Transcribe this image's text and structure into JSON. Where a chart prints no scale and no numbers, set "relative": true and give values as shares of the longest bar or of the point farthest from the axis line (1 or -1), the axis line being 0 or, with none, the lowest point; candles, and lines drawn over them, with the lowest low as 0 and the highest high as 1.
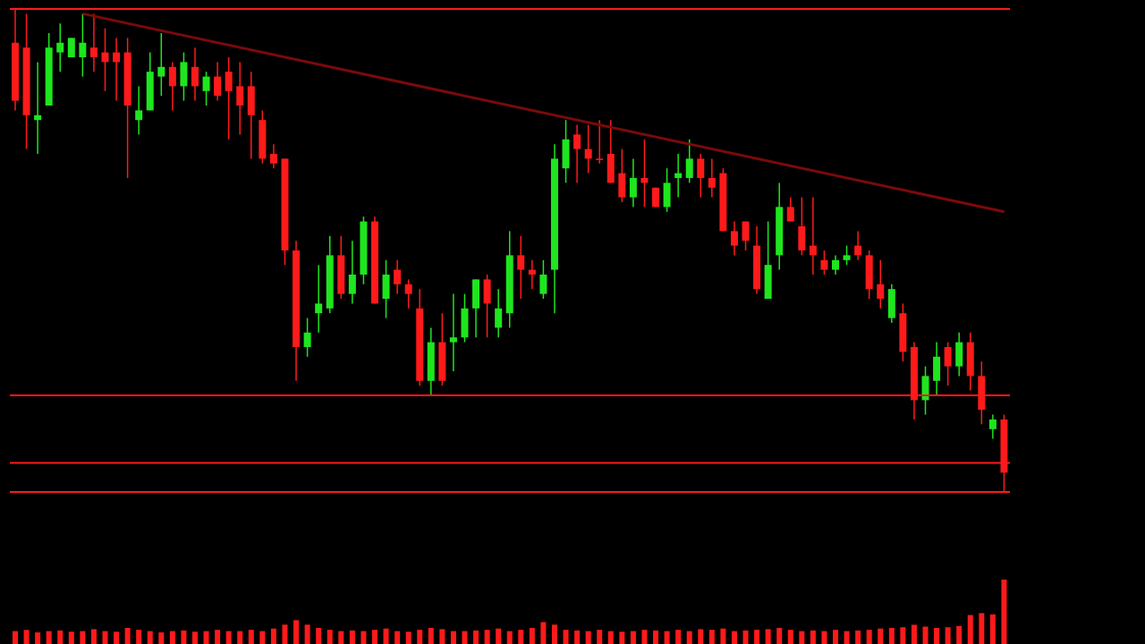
{
  "chart_data": [
    {
      "type": "candlestick",
      "relative": true,
      "categories": [
        null,
        null,
        null,
        null,
        null,
        null,
        null,
        null,
        null,
        null,
        null,
        null,
        null,
        null,
        null,
        null,
        null,
        null,
        null,
        null,
        null,
        null,
        null,
        null,
        null,
        null,
        null,
        null,
        null,
        null,
        null,
        null,
        null,
        null,
        null,
        null,
        null,
        null,
        null,
        null,
        null,
        null,
        null,
        null,
        null,
        null,
        null,
        null,
        null,
        null,
        null,
        null,
        null,
        null,
        null,
        null,
        null,
        null,
        null,
        null,
        null,
        null,
        null,
        null,
        null,
        null,
        null,
        null,
        null,
        null,
        null,
        null,
        null,
        null,
        null,
        null,
        null,
        null,
        null,
        null,
        null,
        null,
        null,
        null,
        null,
        null,
        null,
        null,
        null
      ],
      "ohlc": [
        [
          0.93,
          1,
          0.79,
          0.81
        ],
        [
          0.92,
          0.99,
          0.71,
          0.78
        ],
        [
          0.77,
          0.89,
          0.7,
          0.78
        ],
        [
          0.8,
          0.95,
          0.8,
          0.92
        ],
        [
          0.91,
          0.97,
          0.87,
          0.93
        ],
        [
          0.9,
          0.94,
          0.9,
          0.94
        ],
        [
          0.9,
          0.99,
          0.86,
          0.93
        ],
        [
          0.92,
          0.99,
          0.87,
          0.9
        ],
        [
          0.91,
          0.96,
          0.83,
          0.89
        ],
        [
          0.91,
          0.94,
          0.81,
          0.89
        ],
        [
          0.91,
          0.94,
          0.65,
          0.8
        ],
        [
          0.77,
          0.84,
          0.74,
          0.79
        ],
        [
          0.79,
          0.91,
          0.79,
          0.87
        ],
        [
          0.86,
          0.95,
          0.82,
          0.88
        ],
        [
          0.88,
          0.89,
          0.79,
          0.84
        ],
        [
          0.84,
          0.91,
          0.81,
          0.89
        ],
        [
          0.88,
          0.92,
          0.81,
          0.84
        ],
        [
          0.83,
          0.87,
          0.8,
          0.86
        ],
        [
          0.86,
          0.89,
          0.81,
          0.82
        ],
        [
          0.87,
          0.9,
          0.73,
          0.83
        ],
        [
          0.84,
          0.89,
          0.74,
          0.8
        ],
        [
          0.84,
          0.87,
          0.69,
          0.78
        ],
        [
          0.77,
          0.79,
          0.68,
          0.69
        ],
        [
          0.7,
          0.72,
          0.67,
          0.68
        ],
        [
          0.69,
          0.69,
          0.47,
          0.5
        ],
        [
          0.5,
          0.52,
          0.23,
          0.3
        ],
        [
          0.3,
          0.36,
          0.28,
          0.33
        ],
        [
          0.37,
          0.47,
          0.33,
          0.39
        ],
        [
          0.38,
          0.53,
          0.37,
          0.49
        ],
        [
          0.49,
          0.53,
          0.4,
          0.41
        ],
        [
          0.41,
          0.52,
          0.39,
          0.45
        ],
        [
          0.45,
          0.57,
          0.43,
          0.56
        ],
        [
          0.56,
          0.57,
          0.39,
          0.39
        ],
        [
          0.4,
          0.48,
          0.36,
          0.45
        ],
        [
          0.46,
          0.48,
          0.41,
          0.43
        ],
        [
          0.43,
          0.44,
          0.38,
          0.41
        ],
        [
          0.38,
          0.42,
          0.22,
          0.23
        ],
        [
          0.23,
          0.34,
          0.2,
          0.31
        ],
        [
          0.31,
          0.37,
          0.22,
          0.23
        ],
        [
          0.31,
          0.41,
          0.25,
          0.32
        ],
        [
          0.32,
          0.41,
          0.31,
          0.38
        ],
        [
          0.38,
          0.44,
          0.32,
          0.44
        ],
        [
          0.44,
          0.45,
          0.32,
          0.39
        ],
        [
          0.34,
          0.42,
          0.32,
          0.38
        ],
        [
          0.37,
          0.54,
          0.34,
          0.49
        ],
        [
          0.49,
          0.53,
          0.4,
          0.46
        ],
        [
          0.46,
          0.48,
          0.42,
          0.45
        ],
        [
          0.41,
          0.48,
          0.4,
          0.45
        ],
        [
          0.46,
          0.72,
          0.37,
          0.69
        ],
        [
          0.67,
          0.77,
          0.64,
          0.73
        ],
        [
          0.74,
          0.76,
          0.64,
          0.71
        ],
        [
          0.71,
          0.76,
          0.66,
          0.69
        ],
        [
          0.69,
          0.77,
          0.68,
          0.69
        ],
        [
          0.7,
          0.77,
          0.64,
          0.64
        ],
        [
          0.66,
          0.71,
          0.6,
          0.61
        ],
        [
          0.61,
          0.69,
          0.59,
          0.65
        ],
        [
          0.65,
          0.73,
          0.59,
          0.64
        ],
        [
          0.63,
          0.63,
          0.59,
          0.59
        ],
        [
          0.59,
          0.67,
          0.58,
          0.64
        ],
        [
          0.65,
          0.7,
          0.61,
          0.66
        ],
        [
          0.65,
          0.73,
          0.64,
          0.69
        ],
        [
          0.69,
          0.7,
          0.61,
          0.65
        ],
        [
          0.65,
          0.69,
          0.61,
          0.63
        ],
        [
          0.66,
          0.67,
          0.54,
          0.54
        ],
        [
          0.54,
          0.56,
          0.49,
          0.51
        ],
        [
          0.56,
          0.56,
          0.5,
          0.52
        ],
        [
          0.51,
          0.55,
          0.41,
          0.42
        ],
        [
          0.4,
          0.56,
          0.4,
          0.47
        ],
        [
          0.49,
          0.64,
          0.46,
          0.59
        ],
        [
          0.59,
          0.61,
          0.56,
          0.56
        ],
        [
          0.55,
          0.61,
          0.49,
          0.5
        ],
        [
          0.51,
          0.61,
          0.45,
          0.49
        ],
        [
          0.48,
          0.5,
          0.45,
          0.46
        ],
        [
          0.46,
          0.49,
          0.45,
          0.48
        ],
        [
          0.48,
          0.51,
          0.47,
          0.49
        ],
        [
          0.51,
          0.54,
          0.48,
          0.49
        ],
        [
          0.49,
          0.5,
          0.4,
          0.42
        ],
        [
          0.43,
          0.48,
          0.38,
          0.4
        ],
        [
          0.36,
          0.43,
          0.35,
          0.42
        ],
        [
          0.37,
          0.39,
          0.27,
          0.29
        ],
        [
          0.3,
          0.31,
          0.15,
          0.19
        ],
        [
          0.19,
          0.26,
          0.16,
          0.24
        ],
        [
          0.23,
          0.31,
          0.2,
          0.28
        ],
        [
          0.3,
          0.31,
          0.22,
          0.26
        ],
        [
          0.26,
          0.33,
          0.24,
          0.31
        ],
        [
          0.31,
          0.33,
          0.21,
          0.24
        ],
        [
          0.24,
          0.27,
          0.14,
          0.17
        ],
        [
          0.13,
          0.16,
          0.11,
          0.15
        ],
        [
          0.15,
          0.16,
          0,
          0.04
        ]
      ],
      "colors": [
        "#ff1a1a",
        "#ff1a1a",
        "#1ee61e",
        "#1ee61e",
        "#1ee61e",
        "#1ee61e",
        "#1ee61e",
        "#ff1a1a",
        "#ff1a1a",
        "#ff1a1a",
        "#ff1a1a",
        "#1ee61e",
        "#1ee61e",
        "#1ee61e",
        "#ff1a1a",
        "#1ee61e",
        "#ff1a1a",
        "#1ee61e",
        "#ff1a1a",
        "#ff1a1a",
        "#ff1a1a",
        "#ff1a1a",
        "#ff1a1a",
        "#ff1a1a",
        "#ff1a1a",
        "#ff1a1a",
        "#1ee61e",
        "#1ee61e",
        "#1ee61e",
        "#ff1a1a",
        "#1ee61e",
        "#1ee61e",
        "#ff1a1a",
        "#1ee61e",
        "#ff1a1a",
        "#ff1a1a",
        "#ff1a1a",
        "#1ee61e",
        "#ff1a1a",
        "#1ee61e",
        "#1ee61e",
        "#1ee61e",
        "#ff1a1a",
        "#1ee61e",
        "#1ee61e",
        "#ff1a1a",
        "#ff1a1a",
        "#1ee61e",
        "#1ee61e",
        "#1ee61e",
        "#ff1a1a",
        "#ff1a1a",
        "#ff1a1a",
        "#ff1a1a",
        "#ff1a1a",
        "#1ee61e",
        "#ff1a1a",
        "#ff1a1a",
        "#1ee61e",
        "#1ee61e",
        "#1ee61e",
        "#ff1a1a",
        "#ff1a1a",
        "#ff1a1a",
        "#ff1a1a",
        "#ff1a1a",
        "#ff1a1a",
        "#1ee61e",
        "#1ee61e",
        "#ff1a1a",
        "#ff1a1a",
        "#ff1a1a",
        "#ff1a1a",
        "#1ee61e",
        "#1ee61e",
        "#ff1a1a",
        "#ff1a1a",
        "#ff1a1a",
        "#1ee61e",
        "#ff1a1a",
        "#ff1a1a",
        "#1ee61e",
        "#1ee61e",
        "#ff1a1a",
        "#1ee61e",
        "#ff1a1a",
        "#ff1a1a",
        "#1ee61e",
        "#ff1a1a"
      ],
      "series": [
        {
          "type": "line",
          "color": "#7a0a0a",
          "values": [
            null,
            null,
            null,
            null,
            null,
            null,
            0.99,
            null,
            null,
            null,
            null,
            null,
            null,
            null,
            null,
            null,
            null,
            null,
            null,
            null,
            null,
            null,
            null,
            null,
            null,
            null,
            null,
            null,
            null,
            null,
            null,
            null,
            null,
            null,
            null,
            null,
            null,
            null,
            null,
            null,
            null,
            null,
            null,
            null,
            null,
            null,
            null,
            null,
            null,
            null,
            null,
            null,
            null,
            null,
            null,
            null,
            null,
            null,
            null,
            null,
            null,
            null,
            null,
            null,
            null,
            null,
            null,
            null,
            null,
            null,
            null,
            null,
            null,
            null,
            null,
            null,
            null,
            null,
            null,
            null,
            null,
            null,
            null,
            null,
            null,
            null,
            null,
            null,
            0.58
          ]
        }
      ],
      "ref_lines": [
        {
          "axis": "y",
          "value": 1,
          "color": "#ff1a1a"
        },
        {
          "axis": "y",
          "value": 0.2,
          "color": "#ff1a1a"
        },
        {
          "axis": "y",
          "value": 0.06,
          "color": "#ff1a1a"
        },
        {
          "axis": "y",
          "value": 0,
          "color": "#ff1a1a"
        }
      ]
    },
    {
      "type": "bar",
      "relative": true,
      "color": "#ff1a1a",
      "categories": [
        null,
        null,
        null,
        null,
        null,
        null,
        null,
        null,
        null,
        null,
        null,
        null,
        null,
        null,
        null,
        null,
        null,
        null,
        null,
        null,
        null,
        null,
        null,
        null,
        null,
        null,
        null,
        null,
        null,
        null,
        null,
        null,
        null,
        null,
        null,
        null,
        null,
        null,
        null,
        null,
        null,
        null,
        null,
        null,
        null,
        null,
        null,
        null,
        null,
        null,
        null,
        null,
        null,
        null,
        null,
        null,
        null,
        null,
        null,
        null,
        null,
        null,
        null,
        null,
        null,
        null,
        null,
        null,
        null,
        null,
        null,
        null,
        null,
        null,
        null,
        null,
        null,
        null,
        null,
        null,
        null,
        null,
        null,
        null,
        null,
        null,
        null,
        null,
        null
      ],
      "values": [
        0.2,
        0.22,
        0.18,
        0.2,
        0.21,
        0.19,
        0.2,
        0.23,
        0.2,
        0.19,
        0.25,
        0.22,
        0.2,
        0.18,
        0.2,
        0.21,
        0.19,
        0.2,
        0.22,
        0.2,
        0.2,
        0.22,
        0.2,
        0.24,
        0.3,
        0.37,
        0.3,
        0.25,
        0.22,
        0.2,
        0.21,
        0.2,
        0.22,
        0.24,
        0.2,
        0.19,
        0.22,
        0.25,
        0.23,
        0.2,
        0.2,
        0.21,
        0.22,
        0.24,
        0.2,
        0.22,
        0.25,
        0.34,
        0.3,
        0.22,
        0.21,
        0.2,
        0.22,
        0.2,
        0.19,
        0.2,
        0.22,
        0.21,
        0.2,
        0.22,
        0.2,
        0.23,
        0.22,
        0.24,
        0.2,
        0.21,
        0.22,
        0.23,
        0.25,
        0.22,
        0.2,
        0.21,
        0.2,
        0.22,
        0.2,
        0.21,
        0.22,
        0.24,
        0.25,
        0.26,
        0.3,
        0.27,
        0.25,
        0.26,
        0.28,
        0.45,
        0.48,
        0.46,
        1
      ]
    }
  ]
}
